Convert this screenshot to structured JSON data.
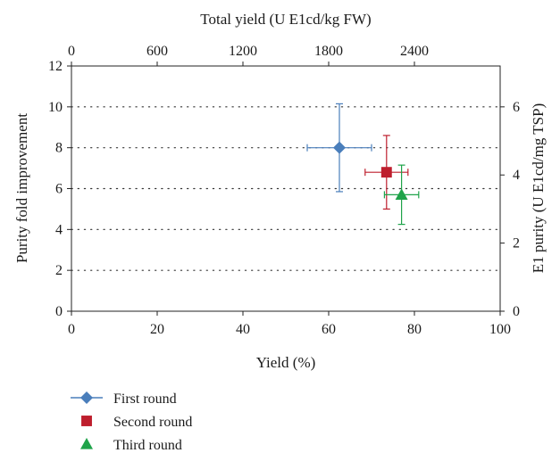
{
  "chart_data": {
    "type": "scatter",
    "title": "",
    "xlabel": "Yield (%)",
    "ylabel": "Purity fold improvement",
    "x2label": "Total yield (U E1cd/kg FW)",
    "y2label": "E1 purity (U E1cd/mg TSP)",
    "xlim": [
      0,
      100
    ],
    "ylim": [
      0,
      12
    ],
    "x2lim": [
      0,
      3000
    ],
    "y2lim": [
      0,
      7.2
    ],
    "xticks": [
      "0",
      "20",
      "40",
      "60",
      "80",
      "100"
    ],
    "yticks": [
      "0",
      "2",
      "4",
      "6",
      "8",
      "10",
      "12"
    ],
    "x2ticks": [
      "0",
      "600",
      "1200",
      "1800",
      "2400"
    ],
    "y2ticks": [
      "0",
      "2",
      "4",
      "6"
    ],
    "grid": "horizontal dotted",
    "legend_position": "bottom-left",
    "series": [
      {
        "name": "First round",
        "color": "#4a7ebb",
        "marker": "diamond",
        "x": 62.5,
        "y": 8.0,
        "xerr": 7.5,
        "yerr": 2.15
      },
      {
        "name": "Second round",
        "color": "#be1e2d",
        "marker": "square",
        "x": 73.5,
        "y": 6.8,
        "xerr": 5.0,
        "yerr": 1.8
      },
      {
        "name": "Third round",
        "color": "#1fa34a",
        "marker": "triangle",
        "x": 77.0,
        "y": 5.7,
        "xerr": 4.0,
        "yerr": 1.45
      }
    ]
  }
}
